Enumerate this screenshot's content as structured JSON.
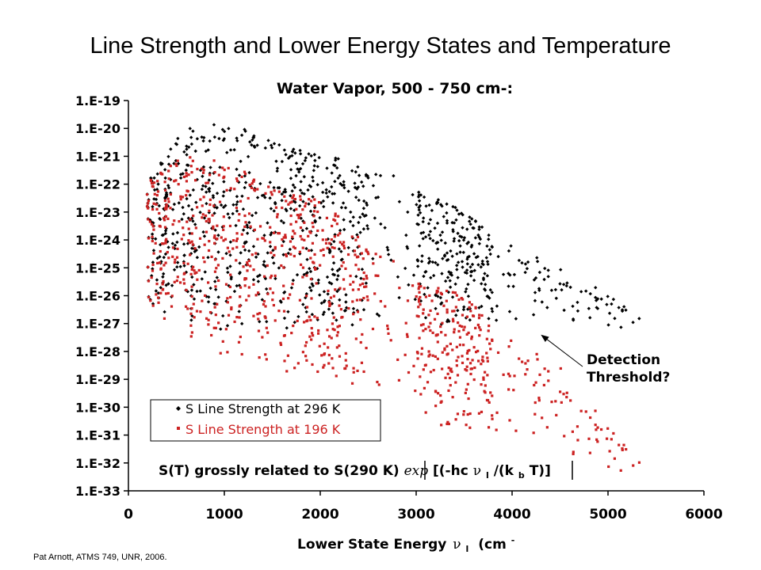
{
  "slide_title": "Line Strength and Lower Energy States and Temperature",
  "footer": "Pat Arnott, ATMS 749, UNR, 2006.",
  "chart_data": {
    "type": "scatter",
    "title": "Water Vapor, 500 - 750 cm-:",
    "xlabel": "Lower State Energy",
    "xlabel_symbol": "ν",
    "xlabel_sub": "l",
    "xlabel_unit": "(cm",
    "xlabel_sup": "-",
    "xlim": [
      0,
      6000
    ],
    "x_ticks": [
      "0",
      "1000",
      "2000",
      "3000",
      "4000",
      "5000",
      "6000"
    ],
    "ylog": true,
    "ylim_exp": [
      -33,
      -19
    ],
    "y_ticks": [
      "1.E-19",
      "1.E-20",
      "1.E-21",
      "1.E-22",
      "1.E-23",
      "1.E-24",
      "1.E-25",
      "1.E-26",
      "1.E-27",
      "1.E-28",
      "1.E-29",
      "1.E-30",
      "1.E-31",
      "1.E-32",
      "1.E-33"
    ],
    "grid": false,
    "legend_placement": "lower-left",
    "series": [
      {
        "name": "S Line Strength at 296 K",
        "color": "#000000",
        "marker": "diamond"
      },
      {
        "name": "S Line Strength at 196 K",
        "color": "#cc2222",
        "marker": "square"
      }
    ],
    "envelope_log10_296": [
      [
        200,
        -21.8,
        -26.5
      ],
      [
        600,
        -20.0,
        -27.2
      ],
      [
        1000,
        -19.8,
        -27.3
      ],
      [
        1500,
        -20.3,
        -27.2
      ],
      [
        2000,
        -21.0,
        -27.1
      ],
      [
        2500,
        -21.2,
        -27.1
      ],
      [
        3000,
        -22.0,
        -27.1
      ],
      [
        3500,
        -23.0,
        -27.1
      ],
      [
        4000,
        -24.2,
        -27.0
      ],
      [
        4500,
        -25.0,
        -27.0
      ],
      [
        5000,
        -25.9,
        -27.1
      ],
      [
        5350,
        -26.8,
        -27.2
      ]
    ],
    "envelope_log10_196": [
      [
        200,
        -21.8,
        -26.5
      ],
      [
        600,
        -21.0,
        -27.7
      ],
      [
        1000,
        -21.2,
        -28.2
      ],
      [
        1500,
        -22.0,
        -28.6
      ],
      [
        2000,
        -22.6,
        -29.0
      ],
      [
        2500,
        -24.0,
        -29.3
      ],
      [
        3000,
        -25.3,
        -30.4
      ],
      [
        3500,
        -26.0,
        -31.0
      ],
      [
        4000,
        -27.6,
        -31.0
      ],
      [
        4500,
        -28.5,
        -31.8
      ],
      [
        5000,
        -30.6,
        -32.2
      ],
      [
        5350,
        -32.0,
        -32.4
      ]
    ],
    "annotations": {
      "detection_line1": "Detection",
      "detection_line2": "Threshold?",
      "arrow_target": [
        4300,
        -27.4
      ],
      "formula_prefix": "S(T) grossly related to S(290 K)",
      "formula_exp": "exp",
      "formula_open": "[(-hc",
      "formula_nu": "ν",
      "formula_nu_sub": "l",
      "formula_mid": "/(k",
      "formula_k_sub": "b",
      "formula_close": "T)]"
    }
  }
}
